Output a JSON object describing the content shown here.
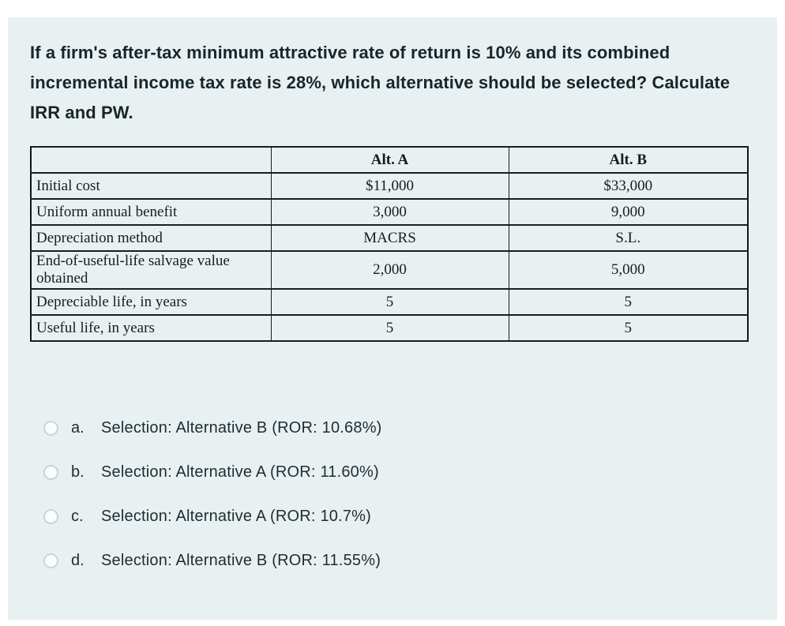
{
  "question": {
    "text": "If a firm's after-tax minimum attractive rate of return is 10% and its combined incremental income tax rate is 28%, which alternative should be selected? Calculate IRR and PW."
  },
  "table": {
    "columns": [
      "",
      "Alt. A",
      "Alt. B"
    ],
    "rows": [
      {
        "label": "Initial cost",
        "alt_a": "$11,000",
        "alt_b": "$33,000"
      },
      {
        "label": "Uniform annual benefit",
        "alt_a": "3,000",
        "alt_b": "9,000"
      },
      {
        "label": "Depreciation method",
        "alt_a": "MACRS",
        "alt_b": "S.L."
      },
      {
        "label": "End-of-useful-life salvage value obtained",
        "alt_a": "2,000",
        "alt_b": "5,000"
      },
      {
        "label": "Depreciable life, in years",
        "alt_a": "5",
        "alt_b": "5"
      },
      {
        "label": "Useful life, in years",
        "alt_a": "5",
        "alt_b": "5"
      }
    ]
  },
  "options": [
    {
      "letter": "a.",
      "text": "Selection: Alternative B (ROR: 10.68%)"
    },
    {
      "letter": "b.",
      "text": "Selection: Alternative A (ROR: 11.60%)"
    },
    {
      "letter": "c.",
      "text": "Selection: Alternative A (ROR: 10.7%)"
    },
    {
      "letter": "d.",
      "text": "Selection: Alternative B (ROR: 11.55%)"
    }
  ],
  "colors": {
    "card_bg": "#e9f0f2",
    "question_text": "#17262c",
    "table_border": "#1c1c1c",
    "radio_border": "#cdd4d7"
  }
}
